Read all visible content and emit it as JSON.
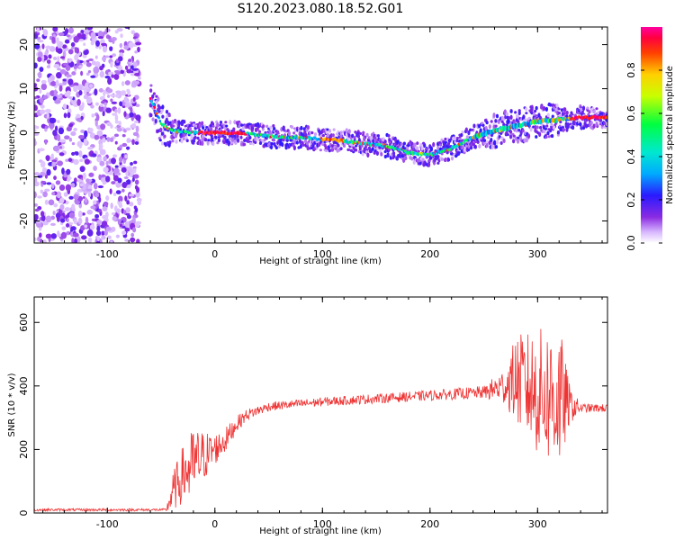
{
  "figure_title": "S120.2023.080.18.52.G01",
  "chart_data": [
    {
      "type": "heatmap",
      "xlabel": "Height of straight line (km)",
      "ylabel": "Frequency (Hz)",
      "xlim": [
        -168,
        365
      ],
      "ylim": [
        -25,
        24
      ],
      "x_ticks": [
        -100,
        0,
        100,
        200,
        300
      ],
      "y_ticks": [
        -20,
        -10,
        0,
        10,
        20
      ],
      "colorbar": {
        "label": "Normalized spectral amplitude",
        "ticks": [
          0.0,
          0.2,
          0.4,
          0.6,
          0.8
        ],
        "tick_labels": [
          "0.0",
          "0.2",
          "0.4",
          "0.6",
          "0.8"
        ],
        "range": [
          0,
          1
        ]
      },
      "noise_region_x": [
        -168,
        -70
      ],
      "ridge": {
        "x": [
          -60,
          -50,
          -40,
          -20,
          0,
          20,
          40,
          60,
          80,
          100,
          120,
          140,
          160,
          180,
          200,
          220,
          240,
          260,
          280,
          300,
          320,
          340,
          365
        ],
        "freq": [
          8,
          2,
          0.5,
          0,
          0,
          0,
          -0.5,
          -1,
          -1,
          -1.5,
          -1.8,
          -2.5,
          -3,
          -4.5,
          -5,
          -3.5,
          -1,
          0.5,
          1.5,
          2.5,
          3,
          3.5,
          3.5
        ]
      },
      "grid": false
    },
    {
      "type": "line",
      "xlabel": "Height of straight line (km)",
      "ylabel": "SNR (10 * v/v)",
      "xlim": [
        -168,
        365
      ],
      "ylim": [
        0,
        680
      ],
      "x_ticks": [
        -100,
        0,
        100,
        200,
        300
      ],
      "y_ticks": [
        0,
        200,
        400,
        600
      ],
      "series": [
        {
          "color": "#ee3333",
          "envelope": {
            "x": [
              -168,
              -45,
              -40,
              -30,
              -20,
              -10,
              0,
              10,
              20,
              30,
              50,
              100,
              150,
              200,
              250,
              270,
              280,
              300,
              320,
              330,
              340,
              365
            ],
            "mean": [
              10,
              10,
              60,
              120,
              150,
              180,
              200,
              230,
              280,
              310,
              335,
              350,
              360,
              370,
              380,
              400,
              420,
              380,
              360,
              340,
              330,
              330
            ],
            "amp": [
              4,
              4,
              60,
              90,
              120,
              80,
              50,
              40,
              25,
              18,
              14,
              14,
              15,
              16,
              20,
              60,
              140,
              200,
              240,
              60,
              15,
              12
            ]
          }
        }
      ],
      "grid": false
    }
  ]
}
